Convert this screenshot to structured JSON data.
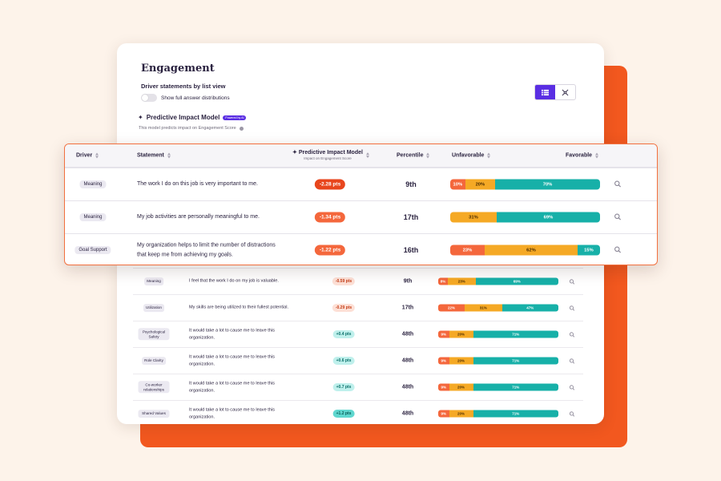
{
  "page": {
    "title": "Engagement",
    "subtitle": "Driver statements by list view",
    "toggle_label": "Show full answer distributions",
    "model_title": "Predictive Impact Model",
    "ai_badge": "Powered by AI",
    "model_desc": "This model predicts impact on Engagement Score",
    "view_modes": [
      "list-icon",
      "grid-icon"
    ],
    "active_view": "list"
  },
  "headers": {
    "driver": "Driver",
    "statement": "Statement",
    "impact": "Predictive Impact Model",
    "impact_sub": "Impact on Engagement Score",
    "percentile": "Percentile",
    "unfavorable": "Unfavorable",
    "favorable": "Favorable"
  },
  "colors": {
    "unfavorable": "#f4673c",
    "neutral": "#f5a925",
    "favorable": "#17b0a8",
    "accent": "#5a2ee3",
    "background_panel": "#f2581f"
  },
  "highlighted_rows": [
    {
      "driver": "Meaning",
      "statement": "The work I do on this job is very important to me.",
      "impact": "-2.28 pts",
      "percentile": "9th",
      "unfavorable": "10%",
      "neutral": "20%",
      "favorable": "70%"
    },
    {
      "driver": "Meaning",
      "statement": "My job activities are personally meaningful to me.",
      "impact": "-1.34 pts",
      "percentile": "17th",
      "unfavorable": "",
      "neutral": "31%",
      "favorable": "69%"
    },
    {
      "driver": "Goal Support",
      "statement": "My organization helps to limit the number of distractions that keep me from achieving my goals.",
      "impact": "-1.22 pts",
      "percentile": "16th",
      "unfavorable": "23%",
      "neutral": "62%",
      "favorable": "15%"
    }
  ],
  "rows": [
    {
      "driver": "Meaning",
      "statement": "I feel that the work I do on my job is valuable.",
      "impact": "-0.59 pts",
      "percentile": "9th",
      "unfavorable": "8%",
      "neutral": "23%",
      "favorable": "69%"
    },
    {
      "driver": "Utilization",
      "statement": "My skills are being utilized to their fullest potential.",
      "impact": "-0.29 pts",
      "percentile": "17th",
      "unfavorable": "22%",
      "neutral": "31%",
      "favorable": "47%"
    },
    {
      "driver": "Psychological Safety",
      "statement": "It would take a lot to cause me to leave this organization.",
      "impact": "+0.4 pts",
      "percentile": "48th",
      "unfavorable": "9%",
      "neutral": "20%",
      "favorable": "71%"
    },
    {
      "driver": "Role Clarity",
      "statement": "It would take a lot to cause me to leave this organization.",
      "impact": "+0.6 pts",
      "percentile": "48th",
      "unfavorable": "9%",
      "neutral": "20%",
      "favorable": "71%"
    },
    {
      "driver": "Co-worker relationships",
      "statement": "It would take a lot to cause me to leave this organization.",
      "impact": "+0.7 pts",
      "percentile": "48th",
      "unfavorable": "9%",
      "neutral": "20%",
      "favorable": "71%"
    },
    {
      "driver": "Shared Values",
      "statement": "It would take a lot to cause me to leave this organization.",
      "impact": "+1.2 pts",
      "percentile": "48th",
      "unfavorable": "9%",
      "neutral": "20%",
      "favorable": "71%"
    }
  ]
}
